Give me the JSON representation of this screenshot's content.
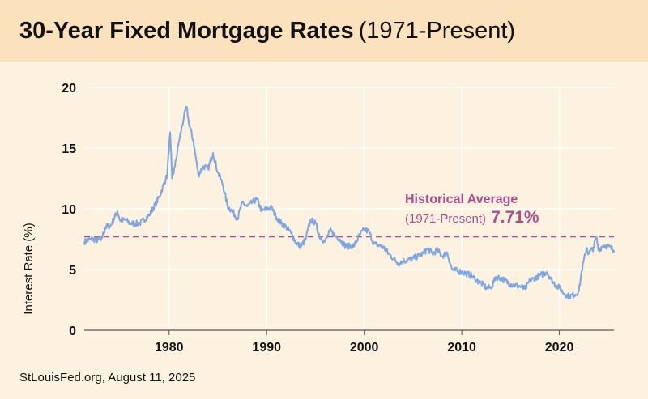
{
  "title": "30-Year Fixed Mortgage Rates",
  "title_range": "(1971-Present)",
  "source": "StLouisFed.org, August 11, 2025",
  "colors": {
    "background": "#fdf1df",
    "title_band": "#fbe2bd",
    "line": "#7ea6e0",
    "average": "#a8508f",
    "grid": "#ffffff",
    "axis": "#555555"
  },
  "chart_data": {
    "type": "line",
    "title": "30-Year Fixed Mortgage Rates (1971-Present)",
    "xlabel": "",
    "ylabel": "Interest Rate (%)",
    "xlim": [
      1971.3,
      2025.6
    ],
    "ylim": [
      0,
      20
    ],
    "x_ticks": [
      1980,
      1990,
      2000,
      2010,
      2020
    ],
    "y_ticks": [
      0,
      5,
      10,
      15,
      20
    ],
    "grid": true,
    "series": [
      {
        "x": [
          1971.3,
          1972.0,
          1973.0,
          1973.5,
          1974.0,
          1974.7,
          1975.0,
          1975.5,
          1976.0,
          1977.0,
          1978.0,
          1979.0,
          1979.8,
          1980.1,
          1980.3,
          1980.6,
          1981.0,
          1981.5,
          1981.8,
          1982.0,
          1982.5,
          1983.0,
          1983.5,
          1984.0,
          1984.5,
          1985.0,
          1985.5,
          1986.0,
          1986.5,
          1987.0,
          1987.5,
          1988.0,
          1988.5,
          1989.0,
          1989.5,
          1990.0,
          1990.5,
          1991.0,
          1991.5,
          1992.0,
          1992.5,
          1993.0,
          1993.5,
          1994.0,
          1994.5,
          1995.0,
          1995.5,
          1996.0,
          1996.5,
          1997.0,
          1997.5,
          1998.0,
          1998.5,
          1999.0,
          1999.5,
          2000.0,
          2000.5,
          2001.0,
          2001.5,
          2002.0,
          2002.5,
          2003.0,
          2003.5,
          2004.0,
          2005.0,
          2006.0,
          2006.5,
          2007.0,
          2007.5,
          2008.0,
          2008.5,
          2009.0,
          2010.0,
          2011.0,
          2011.5,
          2012.0,
          2012.5,
          2013.0,
          2013.5,
          2014.0,
          2015.0,
          2016.0,
          2016.5,
          2017.0,
          2018.0,
          2018.7,
          2019.0,
          2019.5,
          2020.0,
          2020.5,
          2021.0,
          2021.5,
          2022.0,
          2022.3,
          2022.8,
          2023.0,
          2023.5,
          2023.8,
          2024.0,
          2024.5,
          2025.0,
          2025.6
        ],
        "values": [
          7.3,
          7.5,
          7.4,
          8.5,
          8.6,
          9.8,
          9.0,
          9.1,
          8.8,
          8.8,
          9.5,
          11.0,
          12.8,
          16.3,
          12.5,
          13.5,
          15.5,
          17.5,
          18.4,
          17.2,
          15.5,
          12.8,
          13.5,
          13.3,
          14.6,
          13.0,
          12.0,
          10.2,
          9.8,
          9.2,
          10.5,
          10.2,
          10.5,
          10.8,
          9.8,
          10.0,
          10.1,
          9.3,
          8.8,
          8.5,
          8.0,
          7.2,
          6.9,
          7.5,
          9.1,
          8.8,
          7.6,
          7.3,
          8.2,
          7.8,
          7.5,
          7.0,
          6.9,
          7.0,
          7.8,
          8.3,
          8.1,
          7.1,
          7.0,
          6.8,
          6.3,
          5.9,
          5.5,
          5.7,
          5.9,
          6.3,
          6.7,
          6.3,
          6.6,
          6.1,
          6.4,
          5.0,
          4.8,
          4.5,
          4.1,
          3.9,
          3.5,
          3.5,
          4.4,
          4.3,
          3.8,
          3.6,
          3.4,
          4.1,
          4.5,
          4.8,
          4.4,
          3.8,
          3.5,
          3.0,
          2.8,
          2.9,
          3.2,
          4.9,
          6.8,
          6.3,
          6.8,
          7.7,
          6.6,
          7.0,
          6.9,
          6.6
        ]
      }
    ],
    "reference_line": {
      "value": 7.71,
      "label": "Historical Average",
      "sublabel": "(1971-Present)",
      "value_label": "7.71%",
      "style": "dashed"
    }
  }
}
